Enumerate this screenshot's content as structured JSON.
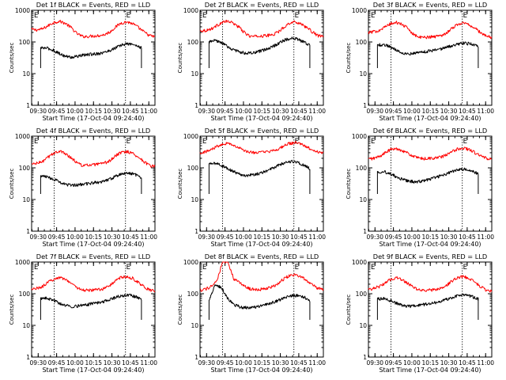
{
  "chart_data": [
    {
      "type": "line",
      "title": "Det 1f BLACK = Events, RED = LLD",
      "xlabel": "Start Time (17-Oct-04 09:24:40)",
      "ylabel": "Counts/sec",
      "x_ticks": [
        "09:30",
        "09:45",
        "10:00",
        "10:15",
        "10:30",
        "10:45",
        "11:00"
      ],
      "y_ticks": [
        "1",
        "10",
        "100",
        "1000"
      ],
      "xlim": [
        "09:24:40",
        "11:05:00"
      ],
      "ylim": [
        1,
        1000
      ],
      "yscale": "log",
      "markers": [
        "E",
        "E"
      ],
      "vlines": [
        "09:43",
        "10:41"
      ],
      "series": [
        {
          "color": "#ff0000",
          "start": "09:24:40",
          "end": "11:05:00",
          "values": [
            250,
            240,
            260,
            330,
            420,
            450,
            390,
            290,
            190,
            150,
            150,
            155,
            160,
            170,
            210,
            300,
            400,
            430,
            380,
            290,
            210,
            160,
            145
          ]
        },
        {
          "color": "#000000",
          "start": "09:32:00",
          "end": "10:54:00",
          "values": [
            65,
            64,
            55,
            43,
            35,
            33,
            36,
            39,
            41,
            43,
            46,
            54,
            67,
            82,
            88,
            80,
            65
          ]
        }
      ]
    },
    {
      "type": "line",
      "title": "Det 2f BLACK = Events, RED = LLD",
      "xlabel": "Start Time (17-Oct-04 09:24:40)",
      "ylabel": "Counts/sec",
      "x_ticks": [
        "09:30",
        "09:45",
        "10:00",
        "10:15",
        "10:30",
        "10:45",
        "11:00"
      ],
      "y_ticks": [
        "1",
        "10",
        "100",
        "1000"
      ],
      "xlim": [
        "09:24:40",
        "11:05:00"
      ],
      "ylim": [
        1,
        1000
      ],
      "yscale": "log",
      "markers": [
        "E",
        "E"
      ],
      "vlines": [
        "09:43",
        "10:41"
      ],
      "series": [
        {
          "color": "#ff0000",
          "start": "09:24:40",
          "end": "11:05:00",
          "values": [
            230,
            230,
            260,
            330,
            420,
            450,
            390,
            290,
            190,
            150,
            150,
            155,
            160,
            170,
            210,
            300,
            400,
            430,
            380,
            290,
            210,
            160,
            145
          ]
        },
        {
          "color": "#000000",
          "start": "09:32:00",
          "end": "10:54:00",
          "values": [
            100,
            110,
            95,
            70,
            55,
            48,
            44,
            45,
            50,
            58,
            70,
            90,
            115,
            130,
            125,
            100,
            80
          ]
        }
      ]
    },
    {
      "type": "line",
      "title": "Det 3f BLACK = Events, RED = LLD",
      "xlabel": "Start Time (17-Oct-04 09:24:40)",
      "ylabel": "Counts/sec",
      "x_ticks": [
        "09:30",
        "09:45",
        "10:00",
        "10:15",
        "10:30",
        "10:45",
        "11:00"
      ],
      "y_ticks": [
        "1",
        "10",
        "100",
        "1000"
      ],
      "xlim": [
        "09:24:40",
        "11:05:00"
      ],
      "ylim": [
        1,
        1000
      ],
      "yscale": "log",
      "markers": [
        "E",
        "E"
      ],
      "vlines": [
        "09:43",
        "10:41"
      ],
      "series": [
        {
          "color": "#ff0000",
          "start": "09:24:40",
          "end": "11:05:00",
          "values": [
            200,
            210,
            240,
            300,
            380,
            410,
            360,
            270,
            180,
            140,
            140,
            145,
            150,
            160,
            200,
            280,
            370,
            400,
            350,
            270,
            200,
            155,
            140
          ]
        },
        {
          "color": "#000000",
          "start": "09:32:00",
          "end": "10:54:00",
          "values": [
            80,
            82,
            72,
            56,
            45,
            42,
            45,
            48,
            51,
            55,
            60,
            68,
            78,
            88,
            92,
            85,
            70
          ]
        }
      ]
    },
    {
      "type": "line",
      "title": "Det 4f BLACK = Events, RED = LLD",
      "xlabel": "Start Time (17-Oct-04 09:24:40)",
      "ylabel": "Counts/sec",
      "x_ticks": [
        "09:30",
        "09:45",
        "10:00",
        "10:15",
        "10:30",
        "10:45",
        "11:00"
      ],
      "y_ticks": [
        "1",
        "10",
        "100",
        "1000"
      ],
      "xlim": [
        "09:24:40",
        "11:05:00"
      ],
      "ylim": [
        1,
        1000
      ],
      "yscale": "log",
      "markers": [
        "E",
        "E"
      ],
      "vlines": [
        "09:43",
        "10:41"
      ],
      "series": [
        {
          "color": "#ff0000",
          "start": "09:24:40",
          "end": "11:05:00",
          "values": [
            130,
            140,
            160,
            220,
            300,
            330,
            290,
            210,
            150,
            120,
            120,
            125,
            130,
            140,
            170,
            240,
            310,
            330,
            290,
            220,
            160,
            120,
            110
          ]
        },
        {
          "color": "#000000",
          "start": "09:32:00",
          "end": "10:54:00",
          "values": [
            55,
            52,
            45,
            36,
            30,
            28,
            29,
            31,
            33,
            35,
            38,
            45,
            55,
            65,
            68,
            62,
            50
          ]
        }
      ]
    },
    {
      "type": "line",
      "title": "Det 5f BLACK = Events, RED = LLD",
      "xlabel": "Start Time (17-Oct-04 09:24:40)",
      "ylabel": "Counts/sec",
      "x_ticks": [
        "09:30",
        "09:45",
        "10:00",
        "10:15",
        "10:30",
        "10:45",
        "11:00"
      ],
      "y_ticks": [
        "1",
        "10",
        "100",
        "1000"
      ],
      "xlim": [
        "09:24:40",
        "11:05:00"
      ],
      "ylim": [
        1,
        1000
      ],
      "yscale": "log",
      "markers": [
        "E",
        "E"
      ],
      "vlines": [
        "09:43",
        "10:41"
      ],
      "series": [
        {
          "color": "#ff0000",
          "start": "09:24:40",
          "end": "11:05:00",
          "values": [
            300,
            320,
            380,
            480,
            580,
            600,
            520,
            420,
            340,
            310,
            305,
            310,
            320,
            340,
            400,
            500,
            590,
            620,
            560,
            460,
            370,
            320,
            300
          ]
        },
        {
          "color": "#000000",
          "start": "09:32:00",
          "end": "10:54:00",
          "values": [
            130,
            140,
            120,
            95,
            75,
            62,
            58,
            60,
            66,
            78,
            95,
            120,
            145,
            160,
            150,
            120,
            95
          ]
        }
      ]
    },
    {
      "type": "line",
      "title": "Det 6f BLACK = Events, RED = LLD",
      "xlabel": "Start Time (17-Oct-04 09:24:40)",
      "ylabel": "Counts/sec",
      "x_ticks": [
        "09:30",
        "09:45",
        "10:00",
        "10:15",
        "10:30",
        "10:45",
        "11:00"
      ],
      "y_ticks": [
        "1",
        "10",
        "100",
        "1000"
      ],
      "xlim": [
        "09:24:40",
        "11:05:00"
      ],
      "ylim": [
        1,
        1000
      ],
      "yscale": "log",
      "markers": [
        "E",
        "E"
      ],
      "vlines": [
        "09:43",
        "10:41"
      ],
      "series": [
        {
          "color": "#ff0000",
          "start": "09:24:40",
          "end": "11:05:00",
          "values": [
            190,
            200,
            230,
            300,
            380,
            400,
            360,
            290,
            230,
            200,
            195,
            200,
            205,
            220,
            260,
            330,
            400,
            420,
            380,
            300,
            240,
            200,
            190
          ]
        },
        {
          "color": "#000000",
          "start": "09:32:00",
          "end": "10:54:00",
          "values": [
            75,
            76,
            66,
            52,
            42,
            38,
            36,
            38,
            42,
            48,
            55,
            65,
            78,
            88,
            90,
            80,
            65
          ]
        }
      ]
    },
    {
      "type": "line",
      "title": "Det 7f BLACK = Events, RED = LLD",
      "xlabel": "Start Time (17-Oct-04 09:24:40)",
      "ylabel": "Counts/sec",
      "x_ticks": [
        "09:30",
        "09:45",
        "10:00",
        "10:15",
        "10:30",
        "10:45",
        "11:00"
      ],
      "y_ticks": [
        "1",
        "10",
        "100",
        "1000"
      ],
      "xlim": [
        "09:24:40",
        "11:05:00"
      ],
      "ylim": [
        1,
        1000
      ],
      "yscale": "log",
      "markers": [
        "E",
        "E"
      ],
      "vlines": [
        "09:43",
        "10:41"
      ],
      "series": [
        {
          "color": "#ff0000",
          "start": "09:24:40",
          "end": "11:05:00",
          "values": [
            140,
            150,
            170,
            230,
            300,
            330,
            290,
            220,
            160,
            130,
            128,
            130,
            135,
            150,
            185,
            260,
            330,
            350,
            310,
            230,
            170,
            130,
            120
          ]
        },
        {
          "color": "#000000",
          "start": "09:32:00",
          "end": "10:54:00",
          "values": [
            70,
            72,
            63,
            50,
            42,
            40,
            41,
            44,
            48,
            52,
            57,
            66,
            78,
            88,
            90,
            82,
            68
          ]
        }
      ]
    },
    {
      "type": "line",
      "title": "Det 8f BLACK = Events, RED = LLD",
      "xlabel": "Start Time (17-Oct-04 09:24:40)",
      "ylabel": "Counts/sec",
      "x_ticks": [
        "09:30",
        "09:45",
        "10:00",
        "10:15",
        "10:30",
        "10:45",
        "11:00"
      ],
      "y_ticks": [
        "1",
        "10",
        "100",
        "1000"
      ],
      "xlim": [
        "09:24:40",
        "11:05:00"
      ],
      "ylim": [
        1,
        1000
      ],
      "yscale": "log",
      "markers": [
        "E",
        "E"
      ],
      "vlines": [
        "09:43",
        "10:41"
      ],
      "series": [
        {
          "color": "#ff0000",
          "start": "09:24:40",
          "end": "11:05:00",
          "values": [
            130,
            140,
            170,
            240,
            1000,
            1000,
            300,
            230,
            170,
            140,
            135,
            140,
            150,
            170,
            220,
            300,
            380,
            400,
            350,
            260,
            190,
            150,
            140
          ]
        },
        {
          "color": "#000000",
          "start": "09:32:00",
          "end": "10:54:00",
          "values": [
            60,
            200,
            150,
            70,
            45,
            38,
            36,
            37,
            40,
            45,
            52,
            62,
            75,
            85,
            88,
            80,
            62
          ]
        }
      ]
    },
    {
      "type": "line",
      "title": "Det 9f BLACK = Events, RED = LLD",
      "xlabel": "Start Time (17-Oct-04 09:24:40)",
      "ylabel": "Counts/sec",
      "x_ticks": [
        "09:30",
        "09:45",
        "10:00",
        "10:15",
        "10:30",
        "10:45",
        "11:00"
      ],
      "y_ticks": [
        "1",
        "10",
        "100",
        "1000"
      ],
      "xlim": [
        "09:24:40",
        "11:05:00"
      ],
      "ylim": [
        1,
        1000
      ],
      "yscale": "log",
      "markers": [
        "E",
        "E"
      ],
      "vlines": [
        "09:43",
        "10:41"
      ],
      "series": [
        {
          "color": "#ff0000",
          "start": "09:24:40",
          "end": "11:05:00",
          "values": [
            140,
            150,
            170,
            220,
            290,
            320,
            280,
            210,
            160,
            130,
            128,
            130,
            135,
            150,
            185,
            260,
            330,
            350,
            310,
            230,
            170,
            130,
            120
          ]
        },
        {
          "color": "#000000",
          "start": "09:32:00",
          "end": "10:54:00",
          "values": [
            68,
            70,
            62,
            50,
            42,
            40,
            41,
            44,
            48,
            52,
            57,
            66,
            78,
            88,
            90,
            82,
            68
          ]
        }
      ]
    }
  ]
}
